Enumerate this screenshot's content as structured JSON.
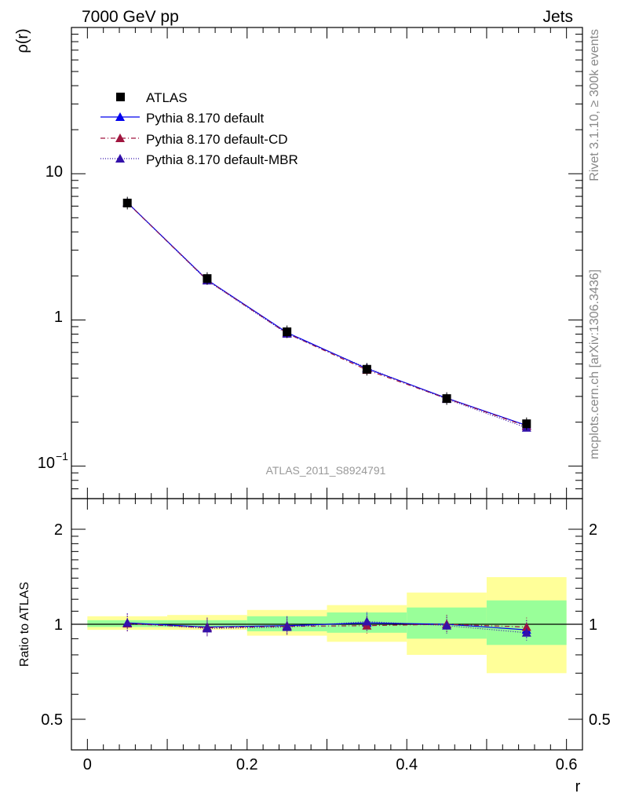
{
  "header": {
    "left_title": "7000 GeV pp",
    "right_title": "Jets"
  },
  "side_text": {
    "rivet": "Rivet 3.1.10, ≥ 300k events",
    "mcplots": "mcplots.cern.ch [arXiv:1306.3436]"
  },
  "analysis_label": "ATLAS_2011_S8924791",
  "legend": {
    "entries": [
      {
        "label": "ATLAS",
        "marker": "square",
        "color": "#000000",
        "line": "none"
      },
      {
        "label": "Pythia 8.170 default",
        "marker": "triangle",
        "color": "#0000ee",
        "line": "solid"
      },
      {
        "label": "Pythia 8.170 default-CD",
        "marker": "triangle",
        "color": "#a0153e",
        "line": "dashdot"
      },
      {
        "label": "Pythia 8.170 default-MBR",
        "marker": "triangle",
        "color": "#3311aa",
        "line": "dotted"
      }
    ]
  },
  "chart_data": [
    {
      "type": "line",
      "panel": "main",
      "ylabel": "ρ(r)",
      "xlabel": "r",
      "yscale": "log",
      "xlim": [
        -0.02,
        0.62
      ],
      "ylim": [
        0.06,
        100
      ],
      "y_tick_labels": [
        "10−1",
        "1",
        "10"
      ],
      "x": [
        0.05,
        0.15,
        0.25,
        0.35,
        0.45,
        0.55
      ],
      "series": [
        {
          "name": "ATLAS",
          "values": [
            6.3,
            1.92,
            0.83,
            0.46,
            0.29,
            0.195
          ]
        },
        {
          "name": "Pythia 8.170 default",
          "values": [
            6.35,
            1.88,
            0.82,
            0.465,
            0.292,
            0.19
          ]
        },
        {
          "name": "Pythia 8.170 default-CD",
          "values": [
            6.33,
            1.87,
            0.81,
            0.455,
            0.29,
            0.188
          ]
        },
        {
          "name": "Pythia 8.170 default-MBR",
          "values": [
            6.36,
            1.86,
            0.805,
            0.47,
            0.288,
            0.183
          ]
        }
      ]
    },
    {
      "type": "line",
      "panel": "ratio",
      "ylabel": "Ratio to ATLAS",
      "xlabel": "r",
      "yscale": "log",
      "xlim": [
        -0.02,
        0.62
      ],
      "ylim": [
        0.4,
        2.5
      ],
      "y_ticks": [
        0.5,
        1,
        2
      ],
      "y_tick_labels": [
        "0.5",
        "1",
        "2"
      ],
      "x_ticks": [
        0,
        0.2,
        0.4,
        0.6
      ],
      "x_tick_labels": [
        "0",
        "0.2",
        "0.4",
        "0.6"
      ],
      "x": [
        0.05,
        0.15,
        0.25,
        0.35,
        0.45,
        0.55
      ],
      "bands": {
        "x_edges": [
          0,
          0.1,
          0.2,
          0.3,
          0.4,
          0.5,
          0.6
        ],
        "inner_green": [
          [
            0.98,
            1.03
          ],
          [
            0.98,
            1.03
          ],
          [
            0.95,
            1.06
          ],
          [
            0.94,
            1.09
          ],
          [
            0.9,
            1.13
          ],
          [
            0.86,
            1.19
          ]
        ],
        "outer_yellow": [
          [
            0.96,
            1.06
          ],
          [
            0.96,
            1.07
          ],
          [
            0.92,
            1.11
          ],
          [
            0.88,
            1.15
          ],
          [
            0.8,
            1.26
          ],
          [
            0.7,
            1.41
          ]
        ],
        "inner_color": "#99ff99",
        "outer_color": "#ffff99"
      },
      "series": [
        {
          "name": "Pythia 8.170 default",
          "values": [
            1.01,
            0.98,
            0.99,
            1.01,
            1.0,
            0.96
          ]
        },
        {
          "name": "Pythia 8.170 default-CD",
          "values": [
            1.005,
            0.975,
            0.985,
            0.99,
            1.0,
            0.98
          ]
        },
        {
          "name": "Pythia 8.170 default-MBR",
          "values": [
            1.01,
            0.97,
            0.98,
            1.02,
            0.99,
            0.94
          ]
        }
      ]
    }
  ]
}
